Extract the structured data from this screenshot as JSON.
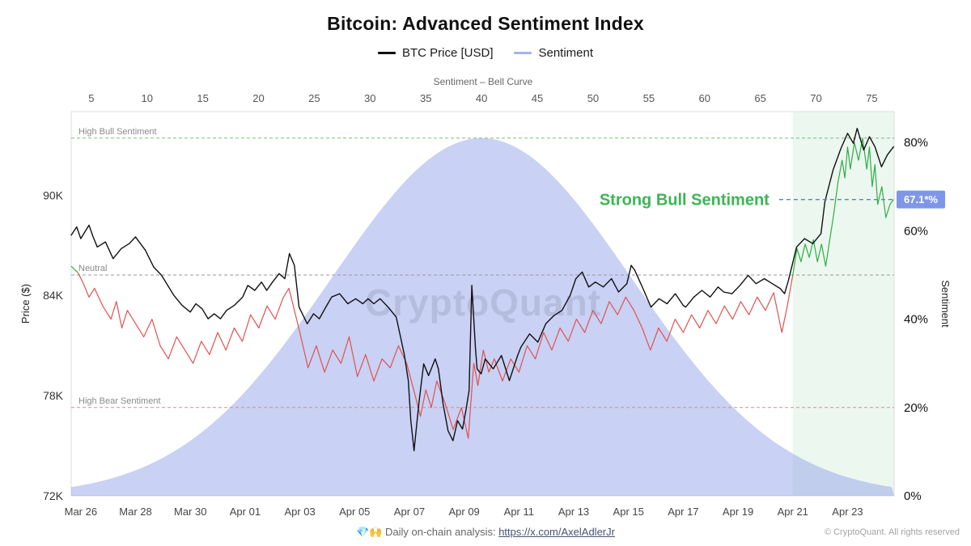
{
  "header": {
    "title": "Bitcoin: Advanced Sentiment Index",
    "legend": [
      {
        "label": "BTC Price [USD]",
        "color": "#111111"
      },
      {
        "label": "Sentiment",
        "color": "#a4b4ec"
      }
    ]
  },
  "watermark": "CryptoQuant",
  "footer": {
    "prefix": "💎🙌 Daily on-chain analysis: ",
    "link": "https://x.com/AxelAdlerJr",
    "copyright": "© CryptoQuant. All rights reserved"
  },
  "chart_data": {
    "type": "line",
    "title": "Bitcoin: Advanced Sentiment Index",
    "top_axis": {
      "label": "Sentiment – Bell Curve",
      "ticks": [
        5,
        10,
        15,
        20,
        25,
        30,
        35,
        40,
        45,
        50,
        55,
        60,
        65,
        70,
        75
      ],
      "range": [
        3.2,
        77.0
      ]
    },
    "x_axis": {
      "tick_labels": [
        "Mar 26",
        "Mar 28",
        "Mar 30",
        "Apr 01",
        "Apr 03",
        "Apr 05",
        "Apr 07",
        "Apr 09",
        "Apr 11",
        "Apr 13",
        "Apr 15",
        "Apr 17",
        "Apr 19",
        "Apr 21",
        "Apr 23"
      ],
      "tick_days": [
        0,
        2,
        4,
        6,
        8,
        10,
        12,
        14,
        16,
        18,
        20,
        22,
        24,
        26,
        28
      ],
      "range_days": [
        -0.35,
        29.7
      ]
    },
    "y_price": {
      "label": "Price ($)",
      "ticks": [
        "72K",
        "78K",
        "84K",
        "90K"
      ],
      "tick_values": [
        72,
        78,
        84,
        90
      ],
      "range": [
        72,
        95
      ]
    },
    "y_sentiment": {
      "label": "Sentiment",
      "ticks": [
        "0%",
        "20%",
        "40%",
        "60%",
        "80%"
      ],
      "tick_values": [
        0,
        20,
        40,
        60,
        80
      ],
      "range": [
        0,
        87
      ]
    },
    "hlines": [
      {
        "name": "high-bull",
        "label": "High Bull Sentiment",
        "value": 81,
        "color": "#7bbd7e"
      },
      {
        "name": "neutral",
        "label": "Neutral",
        "value": 50,
        "color": "#9a9a9a"
      },
      {
        "name": "high-bear",
        "label": "High Bear Sentiment",
        "value": 20,
        "color": "#e08a8a"
      }
    ],
    "current_level": {
      "value": 67.1,
      "badge": "67.1*%",
      "line_start_day": 25.5,
      "color": "#5b79e3",
      "badge_bg": "#7e96ea"
    },
    "annotation": {
      "text": "Strong Bull Sentiment",
      "color": "#3cb554"
    },
    "highlight_region": {
      "start_day": 26.0,
      "color": "rgba(110,195,130,0.13)"
    },
    "bell_curve": {
      "mean": 40,
      "sigma": 13.5,
      "peak": 81,
      "color": "rgba(147,164,233,0.5)"
    },
    "btc_price": {
      "name": "BTC Price [USD]",
      "color": "#111111",
      "points": [
        [
          -0.35,
          87.6
        ],
        [
          -0.15,
          88.1
        ],
        [
          0,
          87.4
        ],
        [
          0.3,
          88.2
        ],
        [
          0.45,
          87.5
        ],
        [
          0.6,
          86.9
        ],
        [
          0.9,
          87.2
        ],
        [
          1.18,
          86.2
        ],
        [
          1.48,
          86.8
        ],
        [
          1.77,
          87.1
        ],
        [
          2.0,
          87.5
        ],
        [
          2.36,
          86.7
        ],
        [
          2.66,
          85.7
        ],
        [
          2.95,
          85.2
        ],
        [
          3.4,
          84.0
        ],
        [
          3.7,
          83.4
        ],
        [
          4.0,
          83.0
        ],
        [
          4.2,
          83.5
        ],
        [
          4.43,
          83.2
        ],
        [
          4.65,
          82.6
        ],
        [
          4.87,
          82.9
        ],
        [
          5.1,
          82.6
        ],
        [
          5.32,
          83.1
        ],
        [
          5.6,
          83.4
        ],
        [
          5.91,
          83.9
        ],
        [
          6.1,
          84.6
        ],
        [
          6.35,
          84.3
        ],
        [
          6.6,
          84.8
        ],
        [
          6.79,
          84.3
        ],
        [
          7.0,
          84.8
        ],
        [
          7.24,
          85.3
        ],
        [
          7.45,
          85.0
        ],
        [
          7.62,
          86.5
        ],
        [
          7.8,
          85.8
        ],
        [
          7.97,
          83.3
        ],
        [
          8.27,
          82.3
        ],
        [
          8.5,
          82.9
        ],
        [
          8.71,
          82.6
        ],
        [
          8.95,
          83.3
        ],
        [
          9.16,
          83.9
        ],
        [
          9.45,
          84.1
        ],
        [
          9.75,
          83.5
        ],
        [
          10.04,
          83.8
        ],
        [
          10.3,
          83.5
        ],
        [
          10.49,
          83.8
        ],
        [
          10.7,
          83.5
        ],
        [
          10.93,
          83.8
        ],
        [
          11.22,
          83.3
        ],
        [
          11.52,
          82.7
        ],
        [
          11.81,
          80.5
        ],
        [
          11.96,
          78.9
        ],
        [
          12.05,
          76.5
        ],
        [
          12.17,
          74.7
        ],
        [
          12.35,
          77.6
        ],
        [
          12.52,
          79.9
        ],
        [
          12.7,
          79.2
        ],
        [
          12.94,
          80.2
        ],
        [
          13.06,
          79.6
        ],
        [
          13.23,
          77.5
        ],
        [
          13.41,
          75.9
        ],
        [
          13.59,
          75.3
        ],
        [
          13.76,
          76.5
        ],
        [
          13.94,
          76.0
        ],
        [
          14.06,
          77.1
        ],
        [
          14.18,
          78.3
        ],
        [
          14.28,
          84.6
        ],
        [
          14.41,
          80.9
        ],
        [
          14.47,
          79.6
        ],
        [
          14.62,
          79.3
        ],
        [
          14.77,
          80.2
        ],
        [
          15.06,
          79.6
        ],
        [
          15.36,
          80.4
        ],
        [
          15.65,
          78.9
        ],
        [
          15.95,
          80.4
        ],
        [
          16.07,
          80.9
        ],
        [
          16.39,
          81.7
        ],
        [
          16.69,
          81.2
        ],
        [
          16.98,
          82.3
        ],
        [
          17.28,
          82.8
        ],
        [
          17.57,
          83.1
        ],
        [
          17.87,
          84.0
        ],
        [
          18.08,
          85.0
        ],
        [
          18.31,
          85.4
        ],
        [
          18.55,
          84.5
        ],
        [
          18.79,
          84.8
        ],
        [
          19.08,
          84.5
        ],
        [
          19.38,
          85.0
        ],
        [
          19.64,
          84.2
        ],
        [
          19.94,
          84.7
        ],
        [
          20.1,
          85.8
        ],
        [
          20.23,
          85.5
        ],
        [
          20.53,
          84.4
        ],
        [
          20.82,
          83.3
        ],
        [
          21.12,
          83.8
        ],
        [
          21.41,
          83.5
        ],
        [
          21.71,
          84.1
        ],
        [
          22.0,
          83.4
        ],
        [
          22.09,
          83.3
        ],
        [
          22.39,
          83.9
        ],
        [
          22.68,
          84.3
        ],
        [
          22.98,
          83.9
        ],
        [
          23.27,
          84.5
        ],
        [
          23.48,
          84.2
        ],
        [
          23.78,
          84.1
        ],
        [
          24.07,
          84.6
        ],
        [
          24.37,
          85.2
        ],
        [
          24.66,
          84.7
        ],
        [
          24.96,
          85.0
        ],
        [
          25.25,
          84.7
        ],
        [
          25.55,
          84.4
        ],
        [
          25.7,
          84.1
        ],
        [
          25.84,
          84.9
        ],
        [
          26.14,
          86.9
        ],
        [
          26.43,
          87.4
        ],
        [
          26.73,
          87.1
        ],
        [
          27.03,
          87.7
        ],
        [
          27.17,
          89.6
        ],
        [
          27.47,
          91.5
        ],
        [
          27.76,
          92.8
        ],
        [
          28.0,
          93.7
        ],
        [
          28.21,
          93.1
        ],
        [
          28.35,
          94.0
        ],
        [
          28.59,
          92.7
        ],
        [
          28.8,
          93.5
        ],
        [
          29.0,
          92.9
        ],
        [
          29.24,
          91.7
        ],
        [
          29.45,
          92.4
        ],
        [
          29.68,
          92.9
        ]
      ]
    },
    "sentiment": {
      "name": "Sentiment",
      "threshold": 50,
      "bull_color": "#2fae44",
      "bear_color": "#e05252",
      "points": [
        [
          -0.35,
          52
        ],
        [
          -0.1,
          50.5
        ],
        [
          0.1,
          48
        ],
        [
          0.3,
          45
        ],
        [
          0.5,
          47
        ],
        [
          0.8,
          43
        ],
        [
          1.1,
          40
        ],
        [
          1.3,
          44
        ],
        [
          1.5,
          38
        ],
        [
          1.7,
          42
        ],
        [
          2.0,
          39
        ],
        [
          2.3,
          36
        ],
        [
          2.6,
          40
        ],
        [
          2.9,
          34
        ],
        [
          3.2,
          31
        ],
        [
          3.5,
          36
        ],
        [
          3.8,
          33
        ],
        [
          4.1,
          30
        ],
        [
          4.4,
          35
        ],
        [
          4.7,
          32
        ],
        [
          5.0,
          37
        ],
        [
          5.3,
          33
        ],
        [
          5.6,
          38
        ],
        [
          5.9,
          35
        ],
        [
          6.2,
          41
        ],
        [
          6.5,
          38
        ],
        [
          6.8,
          43
        ],
        [
          7.1,
          40
        ],
        [
          7.4,
          45
        ],
        [
          7.6,
          47
        ],
        [
          7.8,
          42
        ],
        [
          8.0,
          37
        ],
        [
          8.3,
          29
        ],
        [
          8.6,
          34
        ],
        [
          8.9,
          28
        ],
        [
          9.2,
          33
        ],
        [
          9.5,
          30
        ],
        [
          9.8,
          36
        ],
        [
          10.1,
          27
        ],
        [
          10.4,
          32
        ],
        [
          10.7,
          26
        ],
        [
          11.0,
          31
        ],
        [
          11.3,
          29
        ],
        [
          11.6,
          34
        ],
        [
          11.9,
          30
        ],
        [
          12.2,
          23
        ],
        [
          12.4,
          18
        ],
        [
          12.6,
          24
        ],
        [
          12.8,
          20
        ],
        [
          13.0,
          26
        ],
        [
          13.3,
          21
        ],
        [
          13.6,
          15
        ],
        [
          13.9,
          20
        ],
        [
          14.15,
          13
        ],
        [
          14.35,
          30
        ],
        [
          14.5,
          25
        ],
        [
          14.7,
          33
        ],
        [
          14.9,
          28
        ],
        [
          15.1,
          31
        ],
        [
          15.4,
          26
        ],
        [
          15.7,
          31
        ],
        [
          16.0,
          28
        ],
        [
          16.3,
          34
        ],
        [
          16.6,
          31
        ],
        [
          16.9,
          37
        ],
        [
          17.2,
          33
        ],
        [
          17.5,
          38
        ],
        [
          17.8,
          35
        ],
        [
          18.1,
          40
        ],
        [
          18.4,
          37
        ],
        [
          18.7,
          42
        ],
        [
          19.0,
          39
        ],
        [
          19.3,
          44
        ],
        [
          19.6,
          41
        ],
        [
          19.9,
          45
        ],
        [
          20.2,
          42
        ],
        [
          20.5,
          38
        ],
        [
          20.8,
          33
        ],
        [
          21.1,
          38
        ],
        [
          21.4,
          35
        ],
        [
          21.7,
          40
        ],
        [
          22.0,
          37
        ],
        [
          22.3,
          41
        ],
        [
          22.6,
          38
        ],
        [
          22.9,
          42
        ],
        [
          23.2,
          39
        ],
        [
          23.5,
          43
        ],
        [
          23.8,
          40
        ],
        [
          24.1,
          44
        ],
        [
          24.4,
          41
        ],
        [
          24.7,
          45
        ],
        [
          25.0,
          42
        ],
        [
          25.3,
          46
        ],
        [
          25.6,
          37
        ],
        [
          25.8,
          43
        ],
        [
          26.0,
          50
        ],
        [
          26.15,
          56
        ],
        [
          26.3,
          53
        ],
        [
          26.45,
          57
        ],
        [
          26.6,
          54
        ],
        [
          26.75,
          58
        ],
        [
          26.9,
          53
        ],
        [
          27.05,
          57
        ],
        [
          27.2,
          52
        ],
        [
          27.35,
          58
        ],
        [
          27.5,
          64
        ],
        [
          27.65,
          71
        ],
        [
          27.8,
          76
        ],
        [
          27.9,
          72
        ],
        [
          28.0,
          79
        ],
        [
          28.1,
          74
        ],
        [
          28.25,
          80
        ],
        [
          28.4,
          76
        ],
        [
          28.55,
          81
        ],
        [
          28.7,
          74
        ],
        [
          28.8,
          79
        ],
        [
          28.9,
          70
        ],
        [
          29.0,
          75
        ],
        [
          29.1,
          66
        ],
        [
          29.25,
          70
        ],
        [
          29.4,
          63
        ],
        [
          29.55,
          66
        ],
        [
          29.68,
          67.1
        ]
      ]
    }
  }
}
